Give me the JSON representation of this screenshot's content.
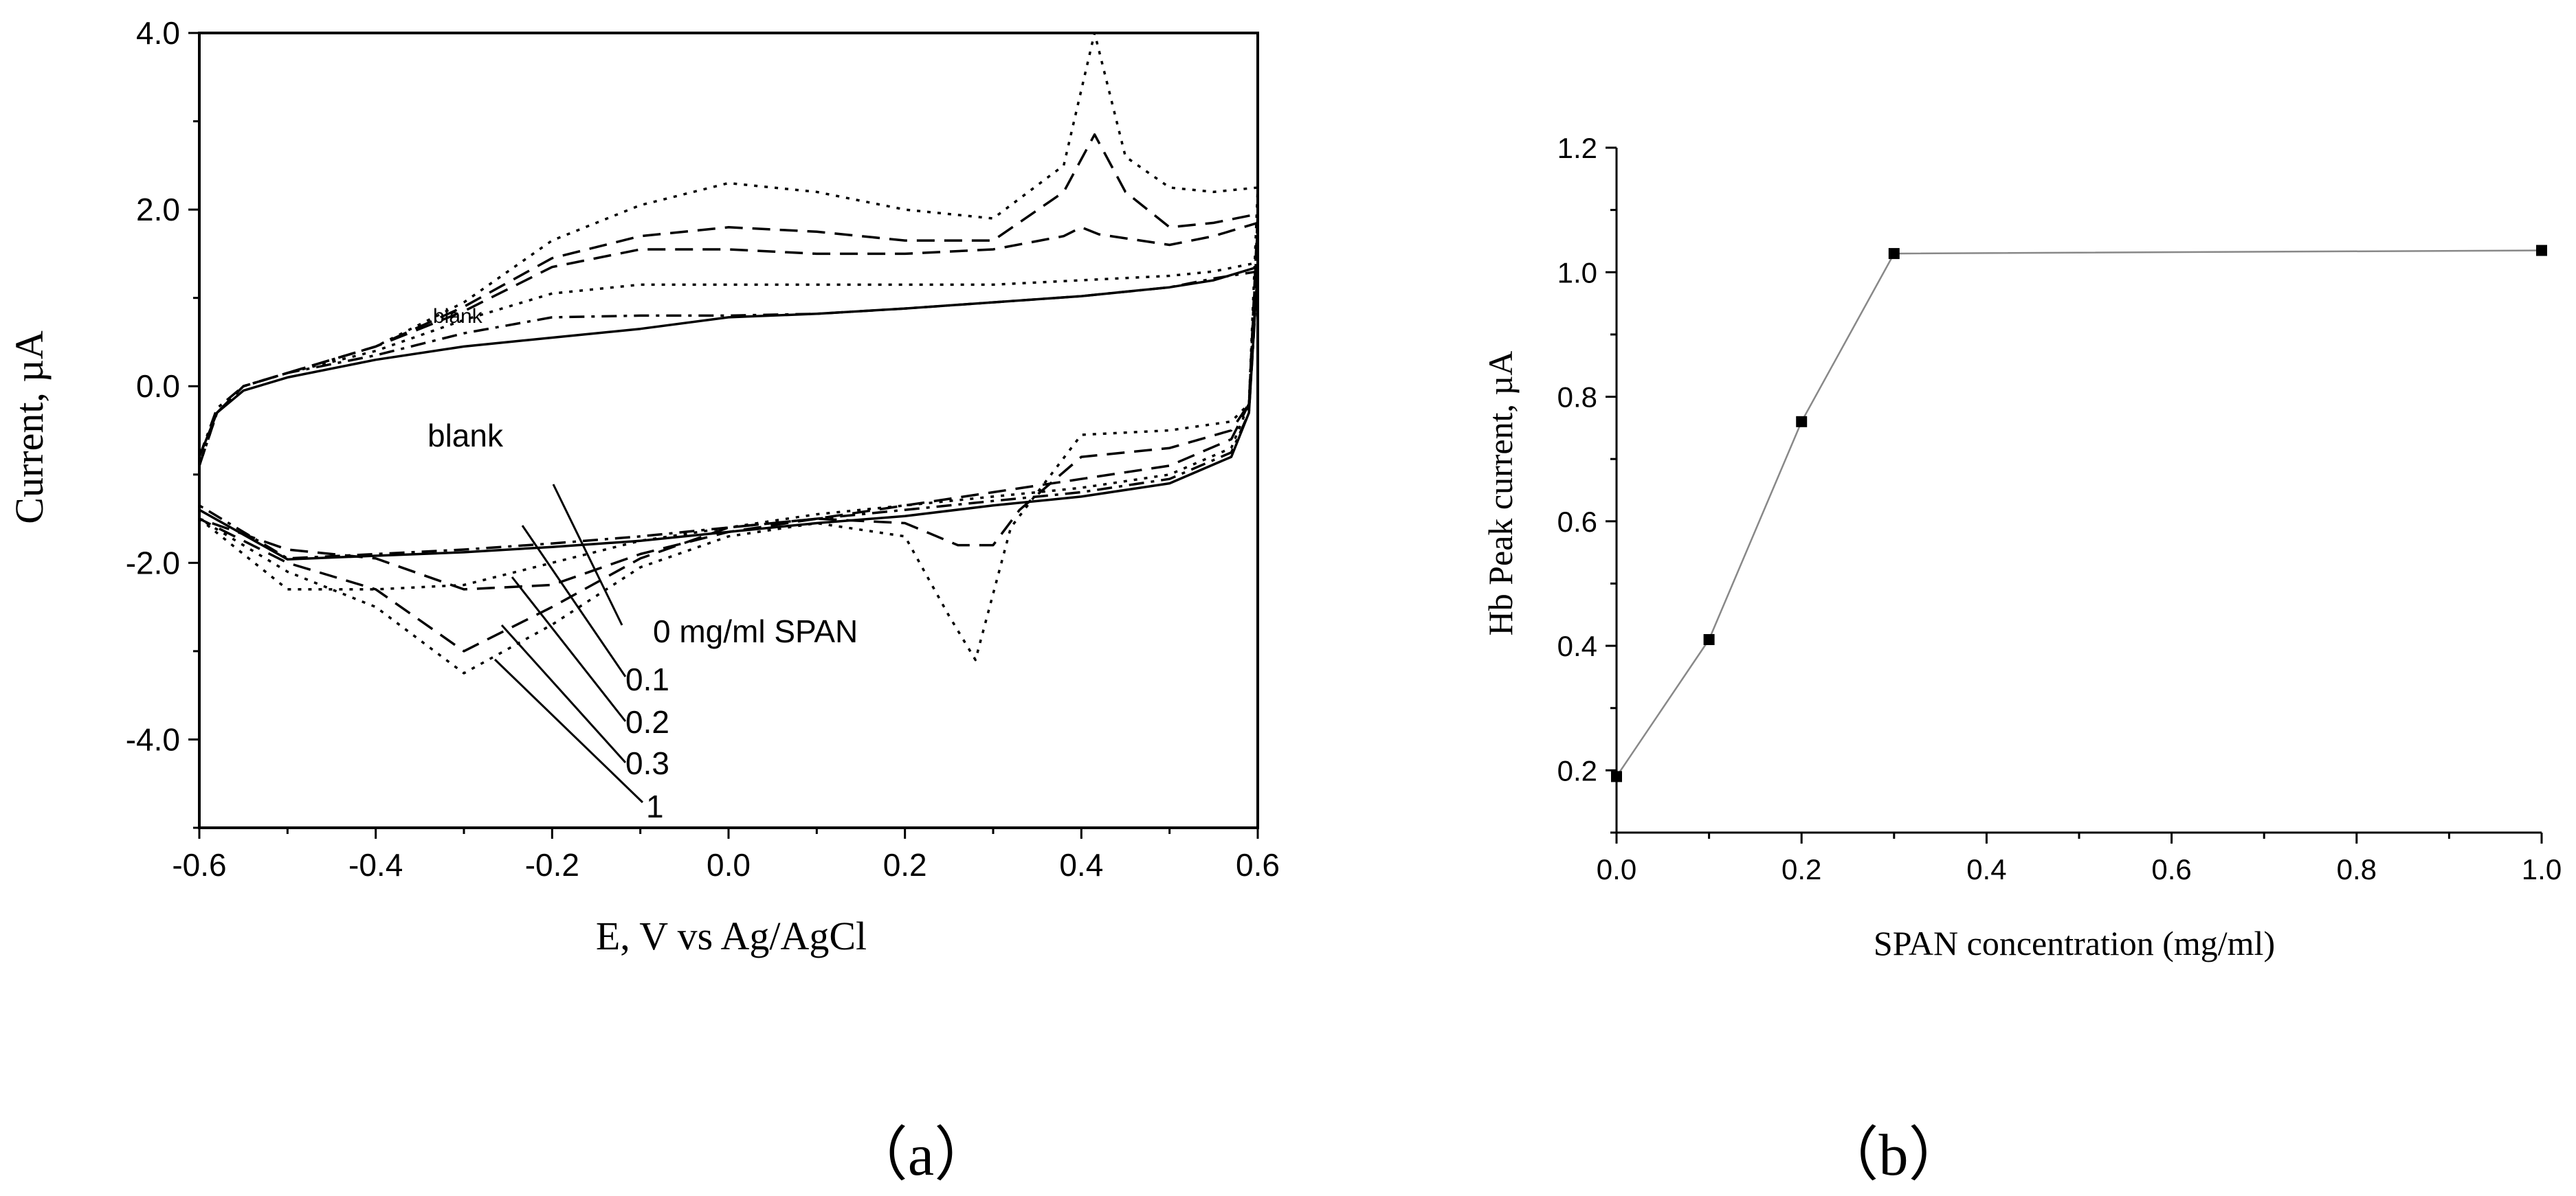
{
  "chart_data": [
    {
      "id": "a",
      "type": "line",
      "xlabel": "E, V vs Ag/AgCl",
      "ylabel": "Current, µA",
      "xlim": [
        -0.6,
        0.6
      ],
      "ylim": [
        -5.0,
        4.0
      ],
      "xticks": [
        -0.6,
        -0.4,
        -0.2,
        0.0,
        0.2,
        0.4,
        0.6
      ],
      "xtick_labels": [
        "-0.6",
        "-0.4",
        "-0.2",
        "0.0",
        "0.2",
        "0.4",
        "0.6"
      ],
      "yticks": [
        -4.0,
        -2.0,
        0.0,
        2.0,
        4.0
      ],
      "ytick_labels": [
        "-4.0",
        "-2.0",
        "0.0",
        "2.0",
        "4.0"
      ],
      "annotations": {
        "blank_small": "blank",
        "blank_large": "blank",
        "zero": "0 mg/ml SPAN",
        "c01": "0.1",
        "c02": "0.2",
        "c03": "0.3",
        "c1": "1"
      },
      "series": [
        {
          "dash": "solid",
          "forward": [
            [
              -0.6,
              -0.8
            ],
            [
              -0.58,
              -0.3
            ],
            [
              -0.55,
              -0.05
            ],
            [
              -0.5,
              0.1
            ],
            [
              -0.4,
              0.3
            ],
            [
              -0.3,
              0.45
            ],
            [
              -0.2,
              0.55
            ],
            [
              -0.1,
              0.65
            ],
            [
              0.0,
              0.78
            ],
            [
              0.1,
              0.82
            ],
            [
              0.2,
              0.88
            ],
            [
              0.3,
              0.95
            ],
            [
              0.4,
              1.02
            ],
            [
              0.5,
              1.12
            ],
            [
              0.55,
              1.2
            ],
            [
              0.6,
              1.35
            ]
          ],
          "reverse": [
            [
              0.6,
              0.8
            ],
            [
              0.59,
              -0.3
            ],
            [
              0.57,
              -0.8
            ],
            [
              0.5,
              -1.1
            ],
            [
              0.4,
              -1.25
            ],
            [
              0.3,
              -1.35
            ],
            [
              0.2,
              -1.47
            ],
            [
              0.1,
              -1.55
            ],
            [
              0.0,
              -1.65
            ],
            [
              -0.1,
              -1.75
            ],
            [
              -0.2,
              -1.82
            ],
            [
              -0.3,
              -1.88
            ],
            [
              -0.4,
              -1.92
            ],
            [
              -0.5,
              -1.96
            ],
            [
              -0.6,
              -1.4
            ]
          ]
        },
        {
          "dash": "dash-dot",
          "forward": [
            [
              -0.6,
              -0.8
            ],
            [
              -0.58,
              -0.25
            ],
            [
              -0.55,
              0.0
            ],
            [
              -0.5,
              0.15
            ],
            [
              -0.4,
              0.35
            ],
            [
              -0.3,
              0.6
            ],
            [
              -0.2,
              0.78
            ],
            [
              -0.1,
              0.8
            ],
            [
              0.0,
              0.8
            ],
            [
              0.1,
              0.82
            ],
            [
              0.2,
              0.88
            ],
            [
              0.3,
              0.95
            ],
            [
              0.4,
              1.02
            ],
            [
              0.5,
              1.12
            ],
            [
              0.55,
              1.22
            ],
            [
              0.6,
              1.3
            ]
          ],
          "reverse": [
            [
              0.6,
              0.75
            ],
            [
              0.59,
              -0.3
            ],
            [
              0.57,
              -0.75
            ],
            [
              0.5,
              -1.05
            ],
            [
              0.4,
              -1.2
            ],
            [
              0.3,
              -1.3
            ],
            [
              0.2,
              -1.4
            ],
            [
              0.1,
              -1.5
            ],
            [
              0.0,
              -1.6
            ],
            [
              -0.1,
              -1.7
            ],
            [
              -0.2,
              -1.78
            ],
            [
              -0.3,
              -1.85
            ],
            [
              -0.4,
              -1.9
            ],
            [
              -0.5,
              -1.95
            ],
            [
              -0.6,
              -1.35
            ]
          ]
        },
        {
          "dash": "dot",
          "forward": [
            [
              -0.6,
              -0.9
            ],
            [
              -0.58,
              -0.3
            ],
            [
              -0.55,
              0.0
            ],
            [
              -0.5,
              0.15
            ],
            [
              -0.4,
              0.4
            ],
            [
              -0.3,
              0.75
            ],
            [
              -0.2,
              1.05
            ],
            [
              -0.1,
              1.15
            ],
            [
              0.0,
              1.15
            ],
            [
              0.1,
              1.15
            ],
            [
              0.2,
              1.15
            ],
            [
              0.3,
              1.15
            ],
            [
              0.4,
              1.2
            ],
            [
              0.5,
              1.25
            ],
            [
              0.55,
              1.3
            ],
            [
              0.6,
              1.4
            ]
          ],
          "reverse": [
            [
              0.6,
              0.9
            ],
            [
              0.59,
              -0.2
            ],
            [
              0.57,
              -0.7
            ],
            [
              0.5,
              -1.0
            ],
            [
              0.4,
              -1.15
            ],
            [
              0.3,
              -1.25
            ],
            [
              0.2,
              -1.35
            ],
            [
              0.1,
              -1.45
            ],
            [
              0.0,
              -1.6
            ],
            [
              -0.1,
              -1.75
            ],
            [
              -0.2,
              -2.0
            ],
            [
              -0.3,
              -2.25
            ],
            [
              -0.4,
              -2.3
            ],
            [
              -0.5,
              -2.3
            ],
            [
              -0.6,
              -1.5
            ]
          ]
        },
        {
          "dash": "dash",
          "forward": [
            [
              -0.6,
              -0.9
            ],
            [
              -0.58,
              -0.3
            ],
            [
              -0.55,
              0.0
            ],
            [
              -0.5,
              0.15
            ],
            [
              -0.4,
              0.45
            ],
            [
              -0.3,
              0.85
            ],
            [
              -0.2,
              1.35
            ],
            [
              -0.1,
              1.55
            ],
            [
              0.0,
              1.55
            ],
            [
              0.1,
              1.5
            ],
            [
              0.2,
              1.5
            ],
            [
              0.3,
              1.55
            ],
            [
              0.38,
              1.7
            ],
            [
              0.4,
              1.8
            ],
            [
              0.42,
              1.72
            ],
            [
              0.5,
              1.6
            ],
            [
              0.55,
              1.7
            ],
            [
              0.6,
              1.85
            ]
          ],
          "reverse": [
            [
              0.6,
              1.0
            ],
            [
              0.59,
              -0.2
            ],
            [
              0.57,
              -0.6
            ],
            [
              0.5,
              -0.9
            ],
            [
              0.4,
              -1.05
            ],
            [
              0.3,
              -1.2
            ],
            [
              0.2,
              -1.35
            ],
            [
              0.1,
              -1.5
            ],
            [
              0.0,
              -1.65
            ],
            [
              -0.1,
              -1.9
            ],
            [
              -0.2,
              -2.25
            ],
            [
              -0.3,
              -2.3
            ],
            [
              -0.4,
              -1.95
            ],
            [
              -0.5,
              -1.85
            ],
            [
              -0.6,
              -1.5
            ]
          ]
        },
        {
          "dash": "dash",
          "forward": [
            [
              -0.6,
              -0.9
            ],
            [
              -0.58,
              -0.3
            ],
            [
              -0.55,
              0.0
            ],
            [
              -0.5,
              0.15
            ],
            [
              -0.4,
              0.45
            ],
            [
              -0.3,
              0.9
            ],
            [
              -0.2,
              1.45
            ],
            [
              -0.1,
              1.7
            ],
            [
              0.0,
              1.8
            ],
            [
              0.1,
              1.75
            ],
            [
              0.2,
              1.65
            ],
            [
              0.3,
              1.65
            ],
            [
              0.38,
              2.2
            ],
            [
              0.415,
              2.85
            ],
            [
              0.45,
              2.2
            ],
            [
              0.5,
              1.8
            ],
            [
              0.55,
              1.85
            ],
            [
              0.6,
              1.95
            ]
          ],
          "reverse": [
            [
              0.6,
              1.1
            ],
            [
              0.59,
              -0.2
            ],
            [
              0.57,
              -0.5
            ],
            [
              0.5,
              -0.7
            ],
            [
              0.4,
              -0.8
            ],
            [
              0.33,
              -1.4
            ],
            [
              0.3,
              -1.8
            ],
            [
              0.26,
              -1.8
            ],
            [
              0.2,
              -1.55
            ],
            [
              0.1,
              -1.5
            ],
            [
              0.0,
              -1.6
            ],
            [
              -0.1,
              -1.95
            ],
            [
              -0.2,
              -2.5
            ],
            [
              -0.3,
              -3.0
            ],
            [
              -0.4,
              -2.3
            ],
            [
              -0.5,
              -2.0
            ],
            [
              -0.6,
              -1.5
            ]
          ]
        },
        {
          "dash": "dot",
          "forward": [
            [
              -0.6,
              -0.9
            ],
            [
              -0.58,
              -0.3
            ],
            [
              -0.55,
              0.0
            ],
            [
              -0.5,
              0.15
            ],
            [
              -0.4,
              0.45
            ],
            [
              -0.3,
              0.95
            ],
            [
              -0.2,
              1.65
            ],
            [
              -0.1,
              2.05
            ],
            [
              0.0,
              2.3
            ],
            [
              0.1,
              2.2
            ],
            [
              0.2,
              2.0
            ],
            [
              0.3,
              1.9
            ],
            [
              0.38,
              2.5
            ],
            [
              0.415,
              4.0
            ],
            [
              0.45,
              2.6
            ],
            [
              0.5,
              2.25
            ],
            [
              0.55,
              2.2
            ],
            [
              0.6,
              2.25
            ]
          ],
          "reverse": [
            [
              0.6,
              1.1
            ],
            [
              0.59,
              -0.2
            ],
            [
              0.57,
              -0.4
            ],
            [
              0.5,
              -0.5
            ],
            [
              0.4,
              -0.55
            ],
            [
              0.32,
              -1.6
            ],
            [
              0.28,
              -3.1
            ],
            [
              0.25,
              -2.6
            ],
            [
              0.2,
              -1.7
            ],
            [
              0.1,
              -1.55
            ],
            [
              0.0,
              -1.7
            ],
            [
              -0.1,
              -2.05
            ],
            [
              -0.2,
              -2.7
            ],
            [
              -0.3,
              -3.25
            ],
            [
              -0.4,
              -2.5
            ],
            [
              -0.5,
              -2.1
            ],
            [
              -0.6,
              -1.5
            ]
          ]
        }
      ]
    },
    {
      "id": "b",
      "type": "scatter",
      "xlabel": "SPAN concentration (mg/ml)",
      "ylabel": "Hb Peak current, µA",
      "xlim": [
        0.0,
        1.0
      ],
      "ylim": [
        0.1,
        1.2
      ],
      "xticks": [
        0.0,
        0.2,
        0.4,
        0.6,
        0.8,
        1.0
      ],
      "xtick_labels": [
        "0.0",
        "0.2",
        "0.4",
        "0.6",
        "0.8",
        "1.0"
      ],
      "yticks": [
        0.2,
        0.4,
        0.6,
        0.8,
        1.0,
        1.2
      ],
      "ytick_labels": [
        "0.2",
        "0.4",
        "0.6",
        "0.8",
        "1.0",
        "1.2"
      ],
      "x": [
        0.0,
        0.1,
        0.2,
        0.3,
        1.0
      ],
      "y": [
        0.19,
        0.41,
        0.76,
        1.03,
        1.035
      ]
    }
  ],
  "captions": {
    "a": "（a）",
    "b": "（b）"
  }
}
